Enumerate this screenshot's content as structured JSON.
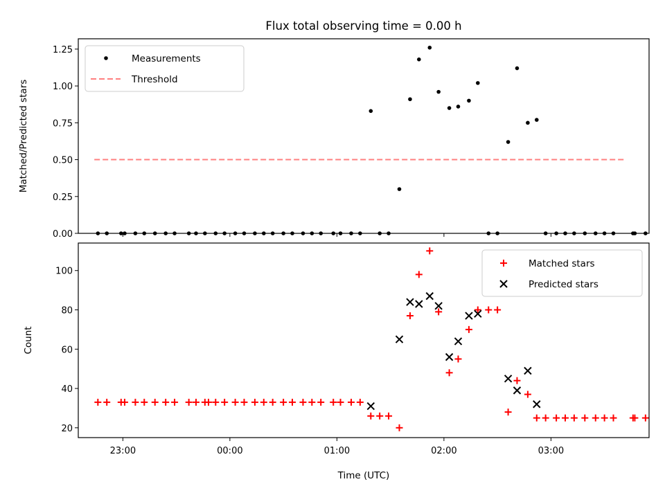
{
  "title": "Flux total observing time = 0.00 h",
  "colors": {
    "measurement": "#000000",
    "threshold": "#ff7f7f",
    "matched": "#ff0000",
    "predicted": "#000000"
  },
  "chart_data": [
    {
      "type": "scatter",
      "title": "Flux total observing time = 0.00 h",
      "xlabel": "",
      "ylabel": "Matched/Predicted stars",
      "x_format": "HH:MM UTC",
      "xlim": [
        "22:35",
        "03:55"
      ],
      "ylim": [
        0,
        1.32
      ],
      "yticks": [
        {
          "value": 0.0,
          "label": "0.00"
        },
        {
          "value": 0.25,
          "label": "0.25"
        },
        {
          "value": 0.5,
          "label": "0.50"
        },
        {
          "value": 0.75,
          "label": "0.75"
        },
        {
          "value": 1.0,
          "label": "1.00"
        },
        {
          "value": 1.25,
          "label": "1.25"
        }
      ],
      "legend": {
        "placement": "upper-left",
        "entries": [
          "Measurements",
          "Threshold"
        ]
      },
      "series": [
        {
          "name": "Measurements",
          "marker": "dot",
          "color": "#000000",
          "points": [
            [
              "22:46",
              0
            ],
            [
              "22:51",
              0
            ],
            [
              "22:59",
              0
            ],
            [
              "23:01",
              0
            ],
            [
              "23:07",
              0
            ],
            [
              "23:12",
              0
            ],
            [
              "23:18",
              0
            ],
            [
              "23:24",
              0
            ],
            [
              "23:29",
              0
            ],
            [
              "23:37",
              0
            ],
            [
              "23:41",
              0
            ],
            [
              "23:46",
              0
            ],
            [
              "23:52",
              0
            ],
            [
              "23:57",
              0
            ],
            [
              "00:03",
              0
            ],
            [
              "00:08",
              0
            ],
            [
              "00:14",
              0
            ],
            [
              "00:19",
              0
            ],
            [
              "00:24",
              0
            ],
            [
              "00:30",
              0
            ],
            [
              "00:35",
              0
            ],
            [
              "00:41",
              0
            ],
            [
              "00:46",
              0
            ],
            [
              "00:51",
              0
            ],
            [
              "00:58",
              0
            ],
            [
              "01:02",
              0
            ],
            [
              "01:08",
              0
            ],
            [
              "01:13",
              0
            ],
            [
              "01:24",
              0
            ],
            [
              "01:29",
              0
            ],
            [
              "01:19",
              0.83
            ],
            [
              "01:35",
              0.3
            ],
            [
              "01:41",
              0.91
            ],
            [
              "01:46",
              1.18
            ],
            [
              "01:52",
              1.26
            ],
            [
              "01:57",
              0.96
            ],
            [
              "02:03",
              0.85
            ],
            [
              "02:08",
              0.86
            ],
            [
              "02:14",
              0.9
            ],
            [
              "02:19",
              1.02
            ],
            [
              "02:25",
              0
            ],
            [
              "02:30",
              0
            ],
            [
              "02:36",
              0.62
            ],
            [
              "02:41",
              1.12
            ],
            [
              "02:47",
              0.75
            ],
            [
              "02:52",
              0.77
            ],
            [
              "02:57",
              0
            ],
            [
              "03:03",
              0
            ],
            [
              "03:08",
              0
            ],
            [
              "03:13",
              0
            ],
            [
              "03:19",
              0
            ],
            [
              "03:25",
              0
            ],
            [
              "03:30",
              0
            ],
            [
              "03:35",
              0
            ],
            [
              "03:46",
              0
            ],
            [
              "03:47",
              0
            ],
            [
              "03:53",
              0
            ]
          ]
        },
        {
          "name": "Threshold",
          "marker": "dashed-line",
          "color": "#ff7f7f",
          "points": [
            [
              "22:44",
              0.5
            ],
            [
              "03:55",
              0.5
            ]
          ]
        }
      ]
    },
    {
      "type": "scatter",
      "title": "",
      "xlabel": "Time (UTC)",
      "ylabel": "Count",
      "x_format": "HH:MM UTC",
      "xlim": [
        "22:35",
        "03:55"
      ],
      "ylim": [
        15,
        114
      ],
      "xticks": [
        "23:00",
        "00:00",
        "01:00",
        "02:00",
        "03:00"
      ],
      "yticks": [
        20,
        40,
        60,
        80,
        100
      ],
      "legend": {
        "placement": "upper-right",
        "entries": [
          "Matched stars",
          "Predicted stars"
        ]
      },
      "series": [
        {
          "name": "Matched stars",
          "marker": "plus",
          "color": "#ff0000",
          "points": [
            [
              "22:46",
              33
            ],
            [
              "22:51",
              33
            ],
            [
              "22:59",
              33
            ],
            [
              "23:01",
              33
            ],
            [
              "23:07",
              33
            ],
            [
              "23:12",
              33
            ],
            [
              "23:18",
              33
            ],
            [
              "23:24",
              33
            ],
            [
              "23:29",
              33
            ],
            [
              "23:37",
              33
            ],
            [
              "23:41",
              33
            ],
            [
              "23:46",
              33
            ],
            [
              "23:48",
              33
            ],
            [
              "23:52",
              33
            ],
            [
              "23:57",
              33
            ],
            [
              "00:03",
              33
            ],
            [
              "00:08",
              33
            ],
            [
              "00:14",
              33
            ],
            [
              "00:19",
              33
            ],
            [
              "00:24",
              33
            ],
            [
              "00:30",
              33
            ],
            [
              "00:35",
              33
            ],
            [
              "00:41",
              33
            ],
            [
              "00:46",
              33
            ],
            [
              "00:51",
              33
            ],
            [
              "00:58",
              33
            ],
            [
              "01:02",
              33
            ],
            [
              "01:08",
              33
            ],
            [
              "01:13",
              33
            ],
            [
              "01:19",
              26
            ],
            [
              "01:24",
              26
            ],
            [
              "01:29",
              26
            ],
            [
              "01:35",
              20
            ],
            [
              "01:41",
              77
            ],
            [
              "01:46",
              98
            ],
            [
              "01:52",
              110
            ],
            [
              "01:57",
              79
            ],
            [
              "02:03",
              48
            ],
            [
              "02:08",
              55
            ],
            [
              "02:14",
              70
            ],
            [
              "02:19",
              80
            ],
            [
              "02:25",
              80
            ],
            [
              "02:30",
              80
            ],
            [
              "02:36",
              28
            ],
            [
              "02:41",
              44
            ],
            [
              "02:47",
              37
            ],
            [
              "02:52",
              25
            ],
            [
              "02:57",
              25
            ],
            [
              "03:03",
              25
            ],
            [
              "03:08",
              25
            ],
            [
              "03:13",
              25
            ],
            [
              "03:19",
              25
            ],
            [
              "03:25",
              25
            ],
            [
              "03:30",
              25
            ],
            [
              "03:35",
              25
            ],
            [
              "03:46",
              25
            ],
            [
              "03:47",
              25
            ],
            [
              "03:53",
              25
            ]
          ]
        },
        {
          "name": "Predicted stars",
          "marker": "x",
          "color": "#000000",
          "points": [
            [
              "01:19",
              31
            ],
            [
              "01:35",
              65
            ],
            [
              "01:41",
              84
            ],
            [
              "01:46",
              83
            ],
            [
              "01:52",
              87
            ],
            [
              "01:57",
              82
            ],
            [
              "02:03",
              56
            ],
            [
              "02:08",
              64
            ],
            [
              "02:14",
              77
            ],
            [
              "02:19",
              78
            ],
            [
              "02:36",
              45
            ],
            [
              "02:41",
              39
            ],
            [
              "02:47",
              49
            ],
            [
              "02:52",
              32
            ]
          ]
        }
      ]
    }
  ]
}
